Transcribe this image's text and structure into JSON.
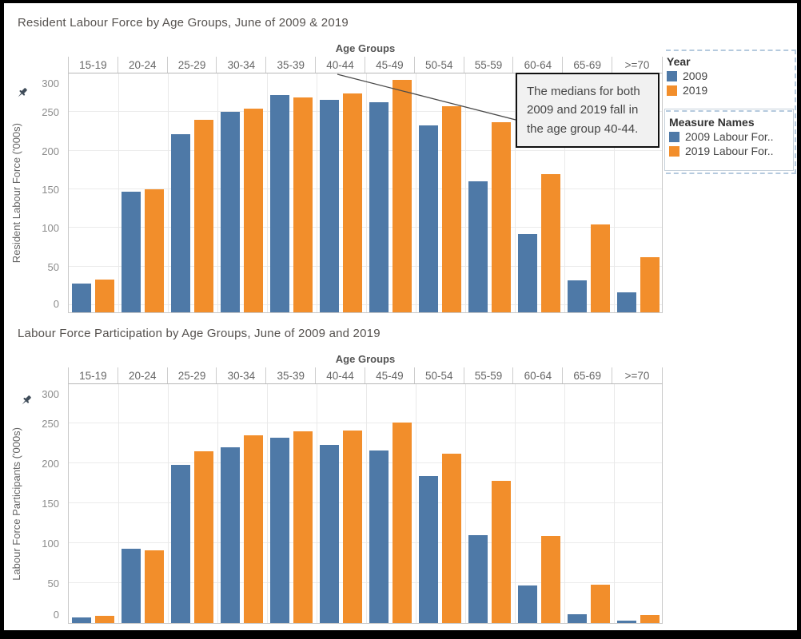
{
  "frame_color": "#000000",
  "background_color": "#ffffff",
  "accent_colors": {
    "blue_2009": "#4e79a7",
    "orange_2019": "#f28e2b",
    "dashed_outline": "#b5cade"
  },
  "annotation": {
    "text": "The medians for both 2009 and 2019 fall in the age group 40-44."
  },
  "legend": {
    "year": {
      "title": "Year",
      "items": [
        {
          "label": "2009",
          "color": "#4e79a7"
        },
        {
          "label": "2019",
          "color": "#f28e2b"
        }
      ]
    },
    "measure_names": {
      "title": "Measure Names",
      "items": [
        {
          "label": "2009 Labour For..",
          "color": "#4e79a7"
        },
        {
          "label": "2019 Labour For..",
          "color": "#f28e2b"
        }
      ]
    }
  },
  "chart_data": [
    {
      "type": "bar",
      "title": "Resident Labour Force by Age Groups, June of 2009 & 2019",
      "xlabel": "Age Groups",
      "ylabel": "Resident Labour Force ('000s)",
      "categories": [
        "15-19",
        "20-24",
        "25-29",
        "30-34",
        "35-39",
        "40-44",
        "45-49",
        "50-54",
        "55-59",
        "60-64",
        "65-69",
        ">=70"
      ],
      "series": [
        {
          "name": "2009",
          "color": "#4e79a7",
          "values": [
            28,
            147,
            221,
            250,
            272,
            266,
            263,
            233,
            160,
            92,
            32,
            17
          ]
        },
        {
          "name": "2019",
          "color": "#f28e2b",
          "values": [
            33,
            150,
            240,
            254,
            269,
            274,
            292,
            258,
            237,
            170,
            104,
            62
          ]
        }
      ],
      "ylim": [
        0,
        300
      ],
      "yticks": [
        0,
        50,
        100,
        150,
        200,
        250,
        300
      ],
      "grid": true,
      "legend_position": "right",
      "axis_pinned": true
    },
    {
      "type": "bar",
      "title": "Labour Force Participation by Age Groups, June of 2009 and 2019",
      "xlabel": "Age Groups",
      "ylabel": "Labour Force Participants ('000s)",
      "categories": [
        "15-19",
        "20-24",
        "25-29",
        "30-34",
        "35-39",
        "40-44",
        "45-49",
        "50-54",
        "55-59",
        "60-64",
        "65-69",
        ">=70"
      ],
      "series": [
        {
          "name": "2009",
          "color": "#4e79a7",
          "values": [
            7,
            93,
            198,
            220,
            232,
            223,
            216,
            184,
            110,
            47,
            11,
            3
          ]
        },
        {
          "name": "2019",
          "color": "#f28e2b",
          "values": [
            9,
            91,
            215,
            235,
            240,
            241,
            251,
            212,
            178,
            109,
            48,
            10
          ]
        }
      ],
      "ylim": [
        0,
        300
      ],
      "yticks": [
        0,
        50,
        100,
        150,
        200,
        250,
        300
      ],
      "grid": true,
      "legend_position": "right",
      "axis_pinned": true
    }
  ]
}
